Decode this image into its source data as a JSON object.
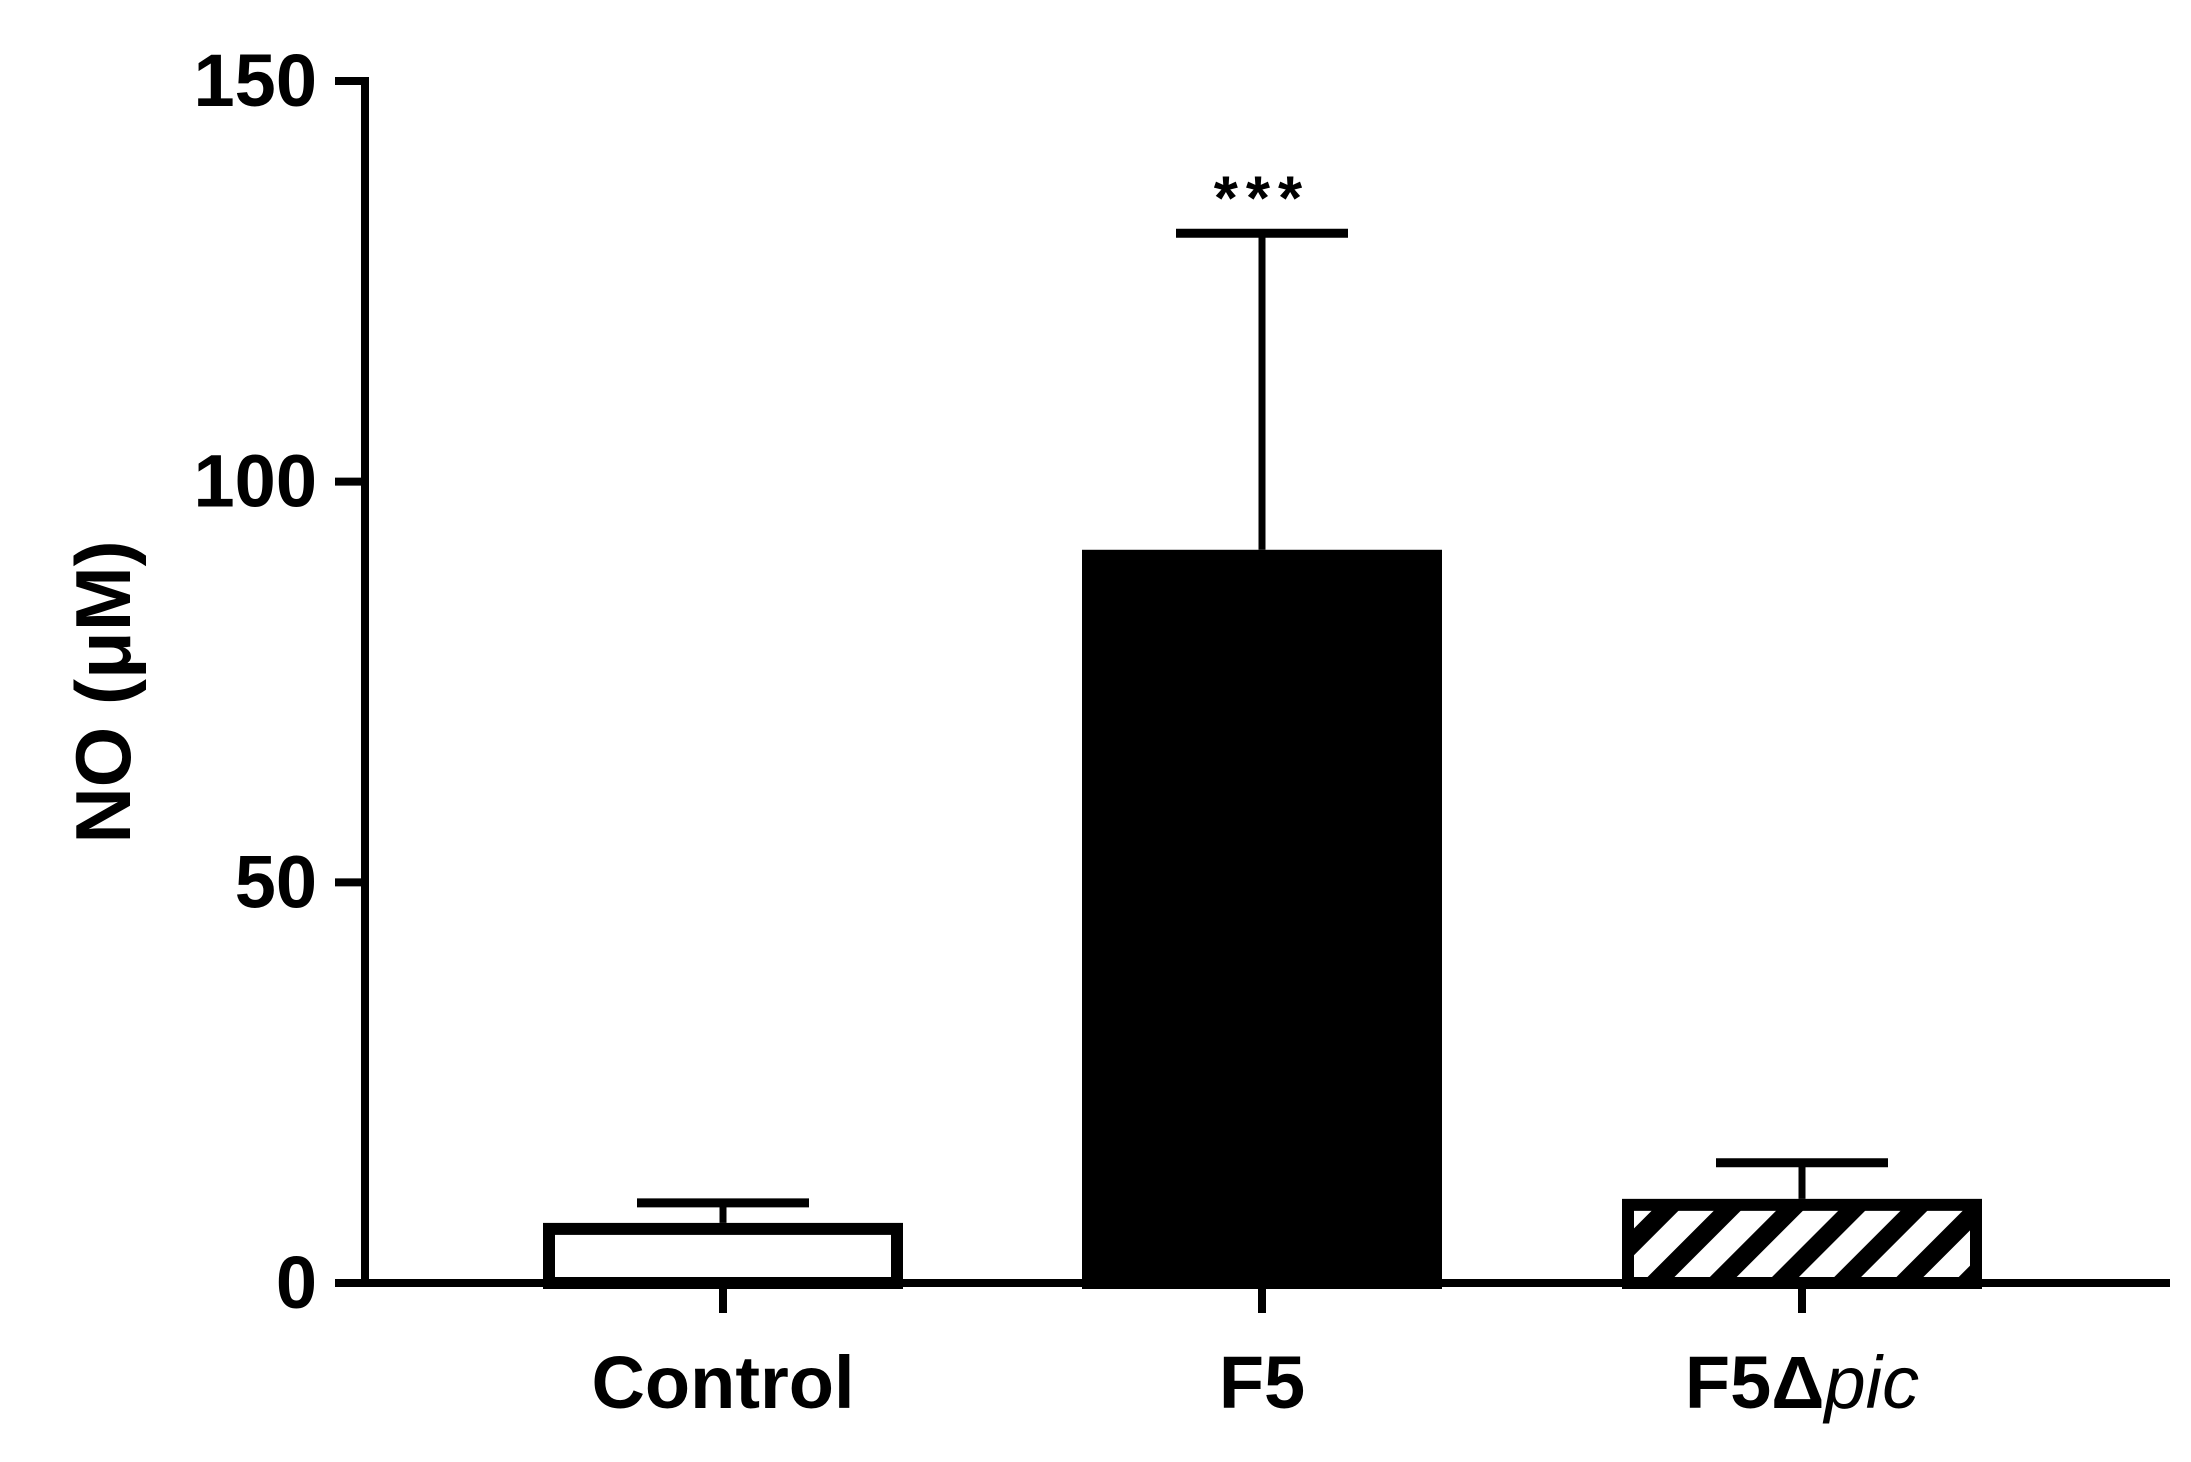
{
  "chart_data": {
    "type": "bar",
    "title": "",
    "xlabel": "",
    "ylabel": "NO (μM)",
    "categories": [
      "Control",
      "F5",
      "F5Δpic"
    ],
    "category_label_parts": [
      [
        {
          "text": "Control",
          "italic": false
        }
      ],
      [
        {
          "text": "F5",
          "italic": false
        }
      ],
      [
        {
          "text": "F5",
          "italic": false
        },
        {
          "text": "Δ",
          "italic": false
        },
        {
          "text": "pic",
          "italic": true
        }
      ]
    ],
    "values": [
      7.5,
      91.5,
      10.5
    ],
    "error_upper": [
      2.5,
      39.5,
      4.5
    ],
    "fills": [
      "white",
      "black",
      "hatched"
    ],
    "annotations": [
      {
        "category_index": 1,
        "text": "***"
      }
    ],
    "ylim": [
      0,
      150
    ],
    "yticks": [
      0,
      50,
      100,
      150
    ],
    "grid": false,
    "legend": "none"
  },
  "colors": {
    "axis": "#000000",
    "bar_edge": "#000000",
    "bar_fill_solid": "#000000",
    "bar_fill_open": "#ffffff"
  }
}
